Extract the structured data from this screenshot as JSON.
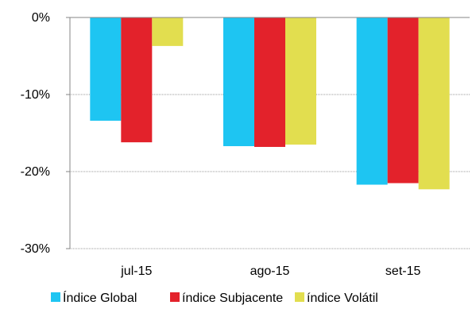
{
  "chart_data": {
    "type": "bar",
    "categories": [
      "jul-15",
      "ago-15",
      "set-15"
    ],
    "series": [
      {
        "name": "Índice Global",
        "color": "#1ec5f2",
        "values": [
          -13.4,
          -16.7,
          -21.7
        ]
      },
      {
        "name": "índice Subjacente",
        "color": "#e3222b",
        "values": [
          -16.2,
          -16.8,
          -21.5
        ]
      },
      {
        "name": "índice Volátil",
        "color": "#e2de4f",
        "values": [
          -3.7,
          -16.5,
          -22.3
        ]
      }
    ],
    "ylim": [
      -30,
      0
    ],
    "yticks": [
      0,
      -10,
      -20,
      -30
    ],
    "ytick_labels": [
      "0%",
      "-10%",
      "-20%",
      "-30%"
    ],
    "grid": true,
    "legend_position": "bottom"
  }
}
